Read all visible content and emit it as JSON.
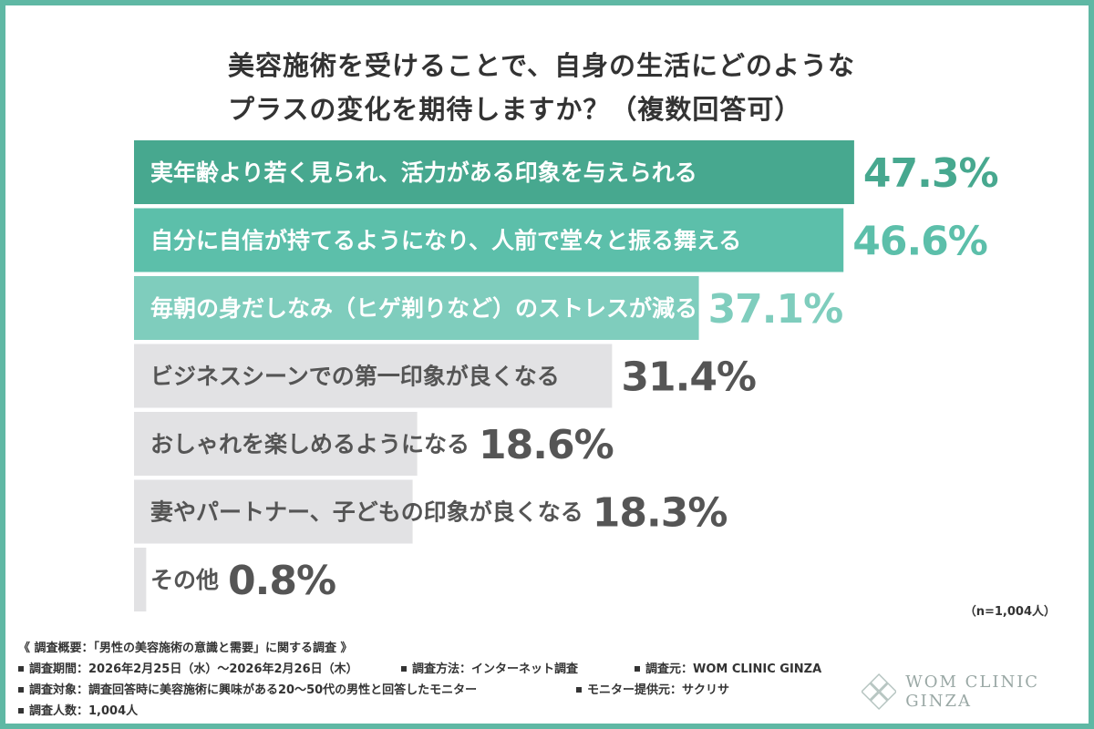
{
  "title": {
    "line1": "美容施術を受けることで、自身の生活にどのような",
    "line2": "プラスの変化を期待しますか？（複数回答可）"
  },
  "chart_data": {
    "type": "bar",
    "orientation": "horizontal",
    "categories": [
      "実年齢より若く見られ、活力がある印象を与えられる",
      "自分に自信が持てるようになり、人前で堂々と振る舞える",
      "毎朝の身だしなみ（ヒゲ剃りなど）のストレスが減る",
      "ビジネスシーンでの第一印象が良くなる",
      "おしゃれを楽しめるようになる",
      "妻やパートナー、子どもの印象が良くなる",
      "その他"
    ],
    "values": [
      47.3,
      46.6,
      37.1,
      31.4,
      18.6,
      18.3,
      0.8
    ],
    "value_labels": [
      "47.3%",
      "46.6%",
      "37.1%",
      "31.4%",
      "18.6%",
      "18.3%",
      "0.8%"
    ],
    "unit": "%",
    "xlim": [
      0,
      50
    ],
    "colors": [
      "#47a88f",
      "#5cbfaa",
      "#7fcdbd",
      "#e2e2e4",
      "#e2e2e4",
      "#e2e2e4",
      "#e2e2e4"
    ],
    "label_colors": [
      "#ffffff",
      "#ffffff",
      "#ffffff",
      "#555555",
      "#555555",
      "#555555",
      "#555555"
    ],
    "value_colors": [
      "#47a88f",
      "#5cbfaa",
      "#7fcdbd",
      "#555555",
      "#555555",
      "#555555",
      "#555555"
    ]
  },
  "n_note": "（n=1,004人）",
  "survey": {
    "heading": "《 調査概要：「男性の美容施術の意識と需要」に関する調査 》",
    "period": "調査期間：2026年2月25日（水）～2026年2月26日（木）",
    "method": "調査方法：インターネット調査",
    "source": "調査元：WOM CLINIC GINZA",
    "target": "調査対象：調査回答時に美容施術に興味がある20～50代の男性と回答したモニター",
    "provider": "モニター提供元：サクリサ",
    "count": "調査人数：1,004人"
  },
  "logo": {
    "text": "WOM CLINIC GINZA",
    "icon": "lotus-diamond-icon"
  }
}
